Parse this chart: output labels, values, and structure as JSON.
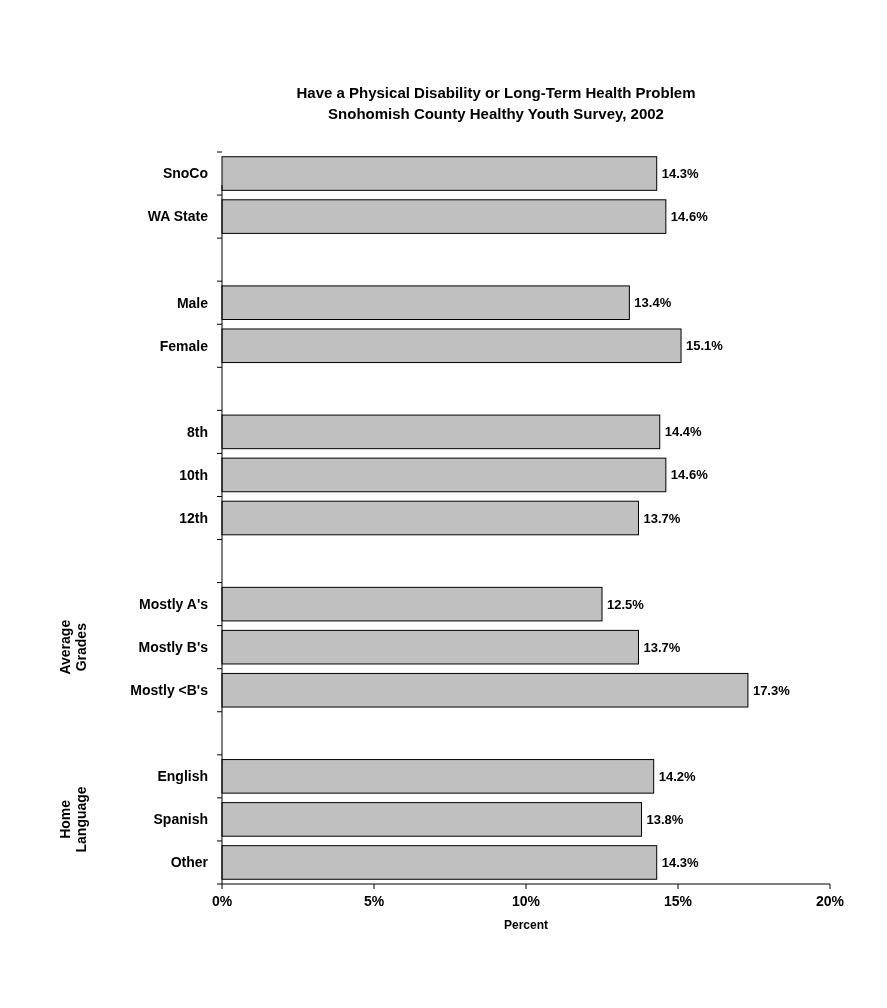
{
  "chart_data": {
    "type": "bar",
    "orientation": "horizontal",
    "title": "Have a Physical Disability or Long-Term Health Problem",
    "subtitle": "Snohomish County Healthy Youth Survey, 2002",
    "xlabel": "Percent",
    "categories": [
      "SnoCo",
      "WA State",
      null,
      "Male",
      "Female",
      null,
      "8th",
      "10th",
      "12th",
      null,
      "Mostly A's",
      "Mostly B's",
      "Mostly <B's",
      null,
      "English",
      "Spanish",
      "Other"
    ],
    "values": [
      14.3,
      14.6,
      null,
      13.4,
      15.1,
      null,
      14.4,
      14.6,
      13.7,
      null,
      12.5,
      13.7,
      17.3,
      null,
      14.2,
      13.8,
      14.3
    ],
    "value_labels": [
      "14.3%",
      "14.6%",
      null,
      "13.4%",
      "15.1%",
      null,
      "14.4%",
      "14.6%",
      "13.7%",
      null,
      "12.5%",
      "13.7%",
      "17.3%",
      null,
      "14.2%",
      "13.8%",
      "14.3%"
    ],
    "color": "#c0c0c0",
    "xlim": [
      0,
      20
    ],
    "xticks": [
      {
        "value": 0,
        "label": "0%"
      },
      {
        "value": 5,
        "label": "5%"
      },
      {
        "value": 10,
        "label": "10%"
      },
      {
        "value": 15,
        "label": "15%"
      },
      {
        "value": 20,
        "label": "20%"
      }
    ],
    "annotations": [
      "Average Grades",
      "Home Language"
    ],
    "grid": false
  }
}
